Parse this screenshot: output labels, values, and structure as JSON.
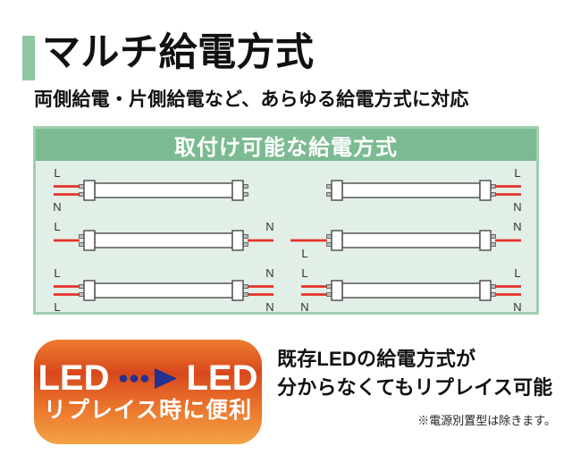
{
  "header": {
    "title": "マルチ給電方式",
    "subtitle": "両側給電・片側給電など、あらゆる給電方式に対応",
    "accent_color": "#8cc7a0"
  },
  "panel": {
    "title": "取付け可能な給電方式",
    "header_bg": "#7cbb91",
    "body_bg": "#e2efe7",
    "border_color": "#a0cfb0",
    "wire_color": "#e5332a",
    "tube_outline": "#4a4a4a",
    "pin_fill": "#b9bdb9",
    "label_color": "#333333",
    "diagrams": [
      {
        "name": "left-side-feed",
        "left": [
          {
            "label": "L",
            "pos": "top"
          },
          {
            "label": "N",
            "pos": "bottom"
          }
        ],
        "right": []
      },
      {
        "name": "both-ends-single-feed",
        "left": [
          {
            "label": "L",
            "pos": "above"
          }
        ],
        "right": [
          {
            "label": "N",
            "pos": "above"
          }
        ]
      },
      {
        "name": "both-ends-double-feed-LLNN",
        "left": [
          {
            "label": "L",
            "pos": "top"
          },
          {
            "label": "L",
            "pos": "bottom"
          }
        ],
        "right": [
          {
            "label": "N",
            "pos": "top"
          },
          {
            "label": "N",
            "pos": "bottom"
          }
        ]
      },
      {
        "name": "right-side-feed",
        "left": [],
        "right": [
          {
            "label": "L",
            "pos": "top"
          },
          {
            "label": "N",
            "pos": "bottom"
          }
        ]
      },
      {
        "name": "both-ends-single-feed-long",
        "left": [
          {
            "label": "L",
            "pos": "below",
            "long": true
          }
        ],
        "right": [
          {
            "label": "N",
            "pos": "above"
          }
        ]
      },
      {
        "name": "both-ends-double-feed-LNLN",
        "left": [
          {
            "label": "L",
            "pos": "top"
          },
          {
            "label": "N",
            "pos": "bottom"
          }
        ],
        "right": [
          {
            "label": "L",
            "pos": "top"
          },
          {
            "label": "N",
            "pos": "bottom"
          }
        ]
      }
    ]
  },
  "badge": {
    "led_from": "LED",
    "led_to": "LED",
    "caption": "リプレイス時に便利",
    "arrow_color": "#23318f",
    "gradient": [
      "#ee7d2e",
      "#d8481d",
      "#e9722b",
      "#f5a345"
    ]
  },
  "description": {
    "line1": "既存LEDの給電方式が",
    "line2": "分からなくてもリプレイス可能",
    "note": "※電源別置型は除きます。"
  }
}
